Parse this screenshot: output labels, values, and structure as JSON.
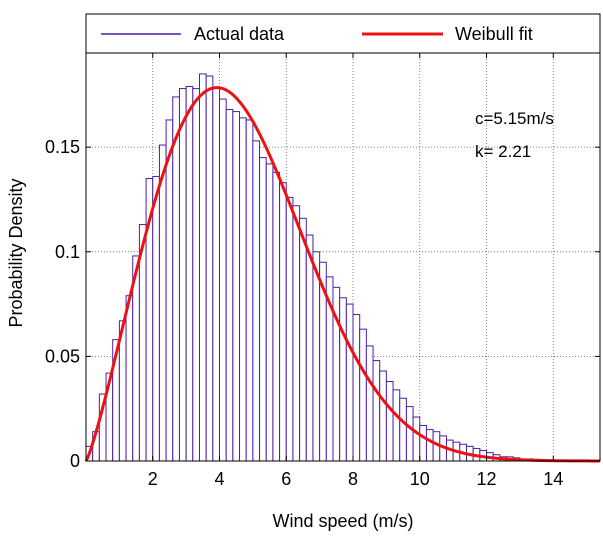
{
  "chart_data": {
    "type": "bar",
    "title": "",
    "xlabel": "Wind speed (m/s)",
    "ylabel": "Probability Density",
    "xlim": [
      0,
      15.4
    ],
    "ylim": [
      0,
      0.195
    ],
    "x_ticks": [
      2,
      4,
      6,
      8,
      10,
      12,
      14
    ],
    "y_ticks": [
      0,
      0.05,
      0.1,
      0.15
    ],
    "x_tick_labels": [
      "2",
      "4",
      "6",
      "8",
      "10",
      "12",
      "14"
    ],
    "y_tick_labels": [
      "0",
      "0.05",
      "0.1",
      "0.15"
    ],
    "grid": true,
    "legend_position": "top",
    "legend": [
      "Actual data",
      "Weibull fit"
    ],
    "annotations": [
      "c=5.15m/s",
      "k= 2.21"
    ],
    "bin_width": 0.2,
    "series": [
      {
        "name": "Actual data",
        "type": "histogram",
        "color": "#4b1fa8",
        "bin_edges_start": 0,
        "values": [
          0.007,
          0.014,
          0.032,
          0.042,
          0.058,
          0.067,
          0.079,
          0.098,
          0.113,
          0.135,
          0.136,
          0.151,
          0.163,
          0.174,
          0.178,
          0.179,
          0.178,
          0.185,
          0.184,
          0.178,
          0.173,
          0.168,
          0.167,
          0.164,
          0.163,
          0.153,
          0.145,
          0.142,
          0.138,
          0.133,
          0.126,
          0.122,
          0.116,
          0.108,
          0.1,
          0.095,
          0.088,
          0.083,
          0.078,
          0.075,
          0.07,
          0.063,
          0.055,
          0.048,
          0.043,
          0.038,
          0.034,
          0.03,
          0.026,
          0.021,
          0.017,
          0.015,
          0.014,
          0.012,
          0.01,
          0.009,
          0.008,
          0.007,
          0.006,
          0.005,
          0.004,
          0.003,
          0.002,
          0.002,
          0.0015,
          0.001,
          0.001,
          0.0008,
          0.0006,
          0.0005,
          0.0004,
          0.0003,
          0.0002,
          0.0002,
          0.0001,
          0.0001,
          0.0001
        ]
      },
      {
        "name": "Weibull fit",
        "type": "line",
        "color": "#ee1111",
        "weibull_c": 5.15,
        "weibull_k": 2.21,
        "x_min": 0,
        "x_max": 15.4
      }
    ]
  }
}
